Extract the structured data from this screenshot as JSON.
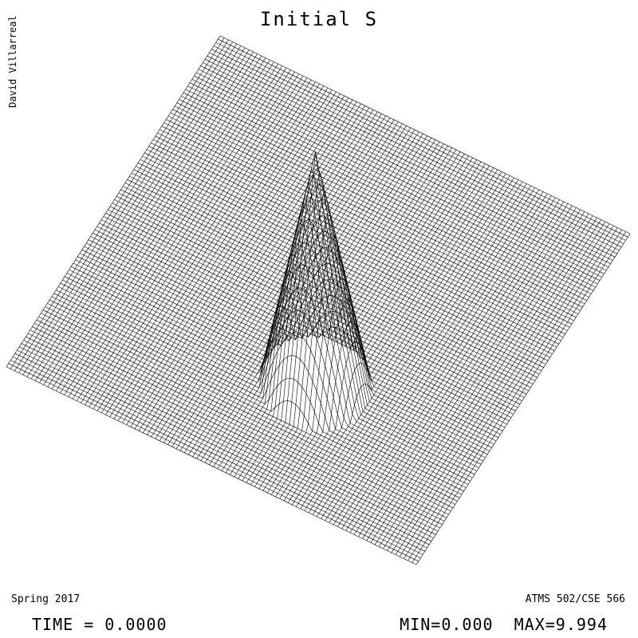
{
  "title": "Initial S",
  "author": "David Villarreal",
  "term": "Spring 2017",
  "course": "ATMS 502/CSE 566",
  "time_label": "TIME = 0.0000",
  "minmax_label": "MIN=0.000  MAX=9.994",
  "colors": {
    "background": "#ffffff",
    "line": "#000000"
  },
  "chart_data": {
    "type": "surface",
    "title": "Initial S",
    "style": "wireframe mesh, isometric view",
    "grid_points": 100,
    "z_min": 0.0,
    "z_max": 9.994,
    "time": 0.0,
    "feature": {
      "shape": "cone",
      "center_grid": [
        30,
        40
      ],
      "radius_grid": 12,
      "peak": 9.994
    }
  }
}
